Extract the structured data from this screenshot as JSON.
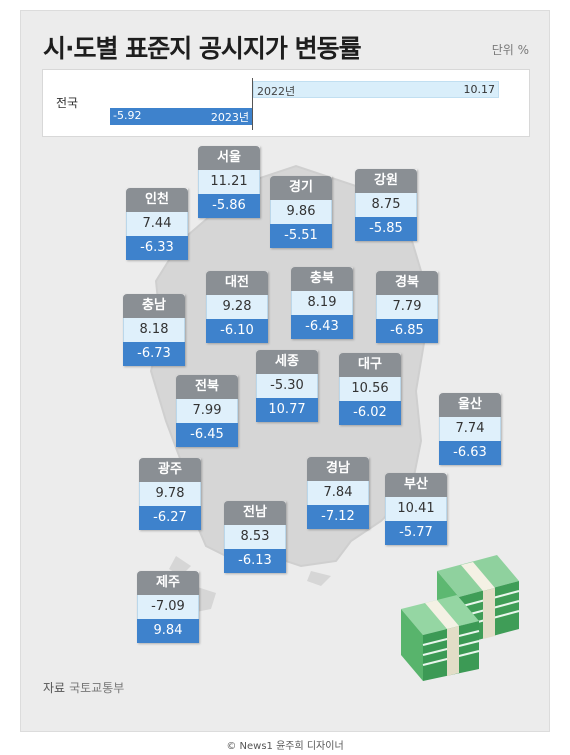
{
  "title": "시·도별 표준지 공시지가 변동률",
  "unit": "단위 %",
  "source_label": "자료",
  "source_name": "국토교통부",
  "credit": "© News1 윤주희 디자이너",
  "colors": {
    "value_2022_bg": "#dff0fb",
    "value_2023_bg": "#3e82cc",
    "name_bg": "#8a8f94",
    "background": "#ececec"
  },
  "chart_data": {
    "type": "table",
    "title": "시·도별 표준지 공시지가 변동률",
    "unit": "%",
    "series_labels": [
      "2022년",
      "2023년"
    ],
    "national": {
      "name": "전국",
      "value_2022": "10.17",
      "value_2023": "-5.92"
    },
    "regions": [
      {
        "name": "서울",
        "v1": "11.21",
        "v2": "-5.86"
      },
      {
        "name": "인천",
        "v1": "7.44",
        "v2": "-6.33"
      },
      {
        "name": "경기",
        "v1": "9.86",
        "v2": "-5.51"
      },
      {
        "name": "강원",
        "v1": "8.75",
        "v2": "-5.85"
      },
      {
        "name": "충남",
        "v1": "8.18",
        "v2": "-6.73"
      },
      {
        "name": "대전",
        "v1": "9.28",
        "v2": "-6.10"
      },
      {
        "name": "충북",
        "v1": "8.19",
        "v2": "-6.43"
      },
      {
        "name": "경북",
        "v1": "7.79",
        "v2": "-6.85"
      },
      {
        "name": "세종",
        "v1": "-5.30",
        "v2": "10.77"
      },
      {
        "name": "대구",
        "v1": "10.56",
        "v2": "-6.02"
      },
      {
        "name": "전북",
        "v1": "7.99",
        "v2": "-6.45"
      },
      {
        "name": "울산",
        "v1": "7.74",
        "v2": "-6.63"
      },
      {
        "name": "광주",
        "v1": "9.78",
        "v2": "-6.27"
      },
      {
        "name": "경남",
        "v1": "7.84",
        "v2": "-7.12"
      },
      {
        "name": "부산",
        "v1": "10.41",
        "v2": "-5.77"
      },
      {
        "name": "전남",
        "v1": "8.53",
        "v2": "-6.13"
      },
      {
        "name": "제주",
        "v1": "-7.09",
        "v2": "9.84"
      }
    ]
  }
}
